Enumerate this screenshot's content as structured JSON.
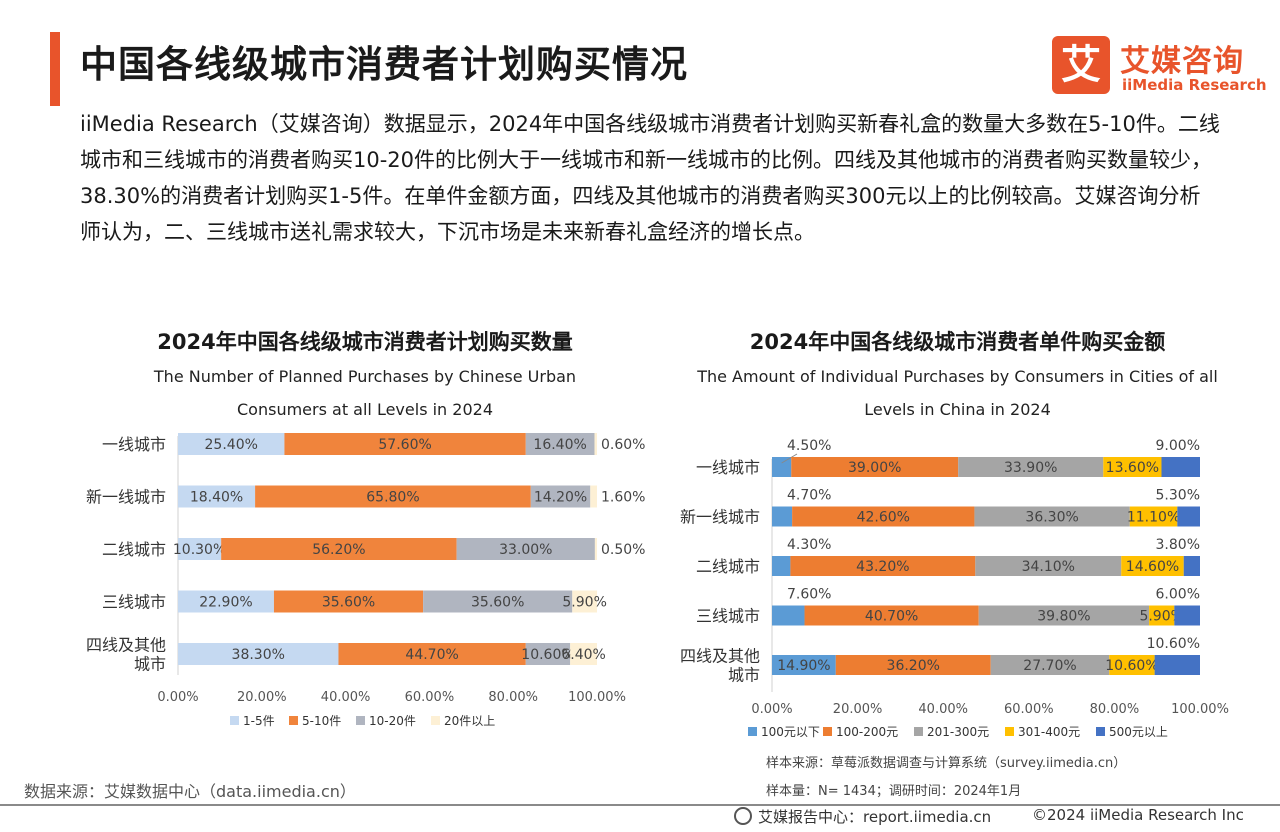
{
  "header": {
    "title": "中国各线级城市消费者计划购买情况",
    "logo_mark": "艾",
    "logo_cn": "艾媒咨询",
    "logo_en": "iiMedia Research"
  },
  "intro": "iiMedia Research（艾媒咨询）数据显示，2024年中国各线级城市消费者计划购买新春礼盒的数量大多数在5-10件。二线城市和三线城市的消费者购买10-20件的比例大于一线城市和新一线城市的比例。四线及其他城市的消费者购买数量较少，38.30%的消费者计划购买1-5件。在单件金额方面，四线及其他城市的消费者购买300元以上的比例较高。艾媒咨询分析师认为，二、三线城市送礼需求较大，下沉市场是未来新春礼盒经济的增长点。",
  "chart_data": [
    {
      "type": "bar",
      "orientation": "horizontal",
      "stacked": true,
      "title_cn": "2024年中国各线级城市消费者计划购买数量",
      "title_en": "The Number of Planned Purchases by Chinese Urban Consumers at all Levels in 2024",
      "categories": [
        "一线城市",
        "新一线城市",
        "二线城市",
        "三线城市",
        "四线及其他城市"
      ],
      "category_lines": [
        [
          "一线城市"
        ],
        [
          "新一线城市"
        ],
        [
          "二线城市"
        ],
        [
          "三线城市"
        ],
        [
          "四线及其他",
          "城市"
        ]
      ],
      "series": [
        {
          "name": "1-5件",
          "color": "#c5d9f1",
          "values": [
            25.4,
            18.4,
            10.3,
            22.9,
            38.3
          ]
        },
        {
          "name": "5-10件",
          "color": "#f0843c",
          "values": [
            57.6,
            65.8,
            56.2,
            35.6,
            44.7
          ]
        },
        {
          "name": "10-20件",
          "color": "#b0b5c0",
          "values": [
            16.4,
            14.2,
            33.0,
            35.6,
            10.6
          ]
        },
        {
          "name": "20件以上",
          "color": "#fdf0d5",
          "values": [
            0.6,
            1.6,
            0.5,
            5.9,
            6.4
          ]
        }
      ],
      "xlim": [
        0,
        100
      ],
      "xticks": [
        "0.00%",
        "20.00%",
        "40.00%",
        "60.00%",
        "80.00%",
        "100.00%"
      ],
      "legend": "bottom"
    },
    {
      "type": "bar",
      "orientation": "horizontal",
      "stacked": true,
      "title_cn": "2024年中国各线级城市消费者单件购买金额",
      "title_en": "The Amount of Individual Purchases by Consumers in Cities of all Levels in China in 2024",
      "categories": [
        "一线城市",
        "新一线城市",
        "二线城市",
        "三线城市",
        "四线及其他城市"
      ],
      "category_lines": [
        [
          "一线城市"
        ],
        [
          "新一线城市"
        ],
        [
          "二线城市"
        ],
        [
          "三线城市"
        ],
        [
          "四线及其他",
          "城市"
        ]
      ],
      "series": [
        {
          "name": "100元以下",
          "color": "#5b9bd5",
          "values": [
            4.5,
            4.7,
            4.3,
            7.6,
            14.9
          ]
        },
        {
          "name": "100-200元",
          "color": "#ed7d31",
          "values": [
            39.0,
            42.6,
            43.2,
            40.7,
            36.2
          ]
        },
        {
          "name": "201-300元",
          "color": "#a5a5a5",
          "values": [
            33.9,
            36.3,
            34.1,
            39.8,
            27.7
          ]
        },
        {
          "name": "301-400元",
          "color": "#ffc000",
          "values": [
            13.6,
            11.1,
            14.6,
            5.9,
            10.6
          ]
        },
        {
          "name": "500元以上",
          "color": "#4472c4",
          "values": [
            9.0,
            5.3,
            3.8,
            6.0,
            10.6
          ]
        }
      ],
      "xlim": [
        0,
        100
      ],
      "xticks": [
        "0.00%",
        "20.00%",
        "40.00%",
        "60.00%",
        "80.00%",
        "100.00%"
      ],
      "legend": "bottom"
    }
  ],
  "footer": {
    "source_left": "数据来源：艾媒数据中心（data.iimedia.cn）",
    "sample_source": "样本来源：草莓派数据调查与计算系统（survey.iimedia.cn）",
    "sample_size": "样本量：N= 1434；调研时间：2024年1月",
    "report": "艾媒报告中心：report.iimedia.cn",
    "copyright": "©2024  iiMedia Research  Inc"
  }
}
